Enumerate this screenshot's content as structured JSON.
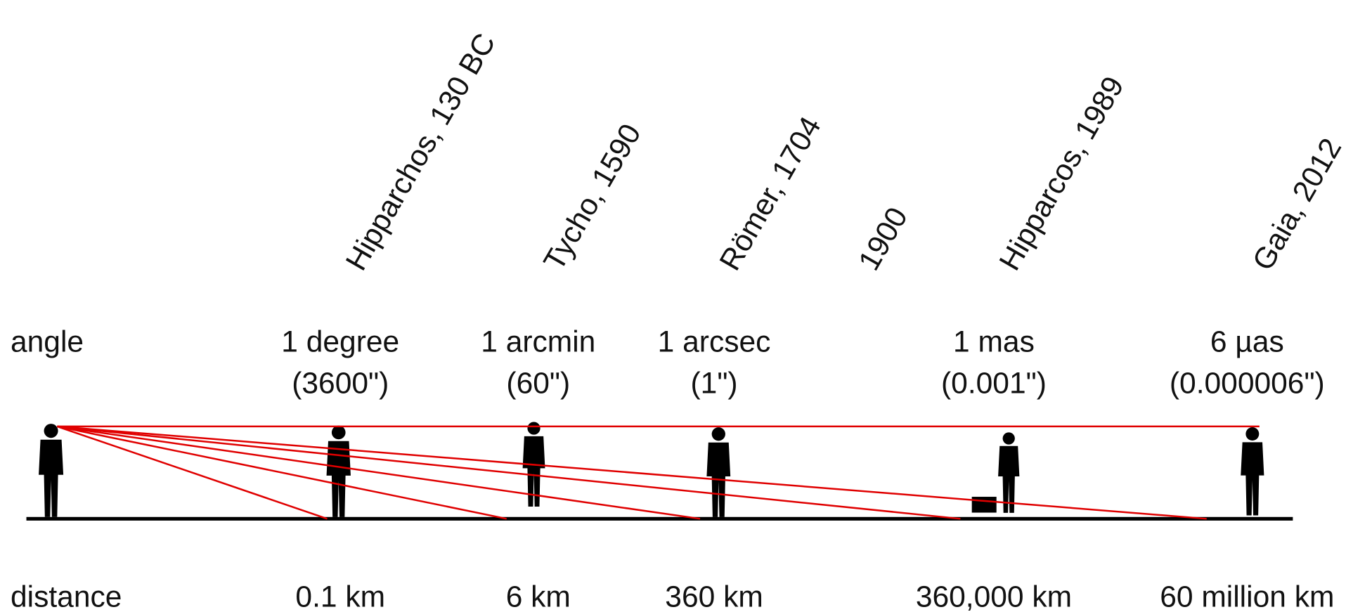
{
  "row_labels": {
    "angle": "angle",
    "distance": "distance"
  },
  "columns": [
    {
      "epoch": "Hipparchos, 130 BC",
      "angle": "1 degree",
      "angle_arcsec": "(3600\")",
      "distance": "0.1 km"
    },
    {
      "epoch": "Tycho, 1590",
      "angle": "1 arcmin",
      "angle_arcsec": "(60\")",
      "distance": "6 km"
    },
    {
      "epoch": "Römer, 1704",
      "angle": "1 arcsec",
      "angle_arcsec": "(1\")",
      "distance": "360 km"
    },
    {
      "epoch": "1900"
    },
    {
      "epoch": "Hipparcos, 1989",
      "angle": "1 mas",
      "angle_arcsec": "(0.001\")",
      "distance": "360,000 km"
    },
    {
      "epoch": "Gaia, 2012",
      "angle": "6 µas",
      "angle_arcsec": "(0.000006\")",
      "distance": "60 million km"
    }
  ]
}
